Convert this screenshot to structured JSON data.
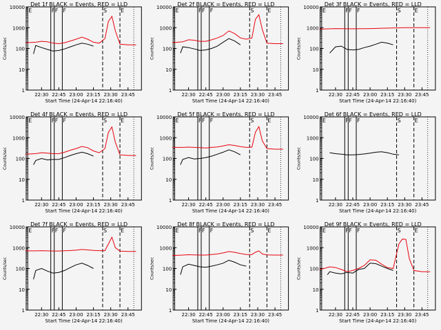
{
  "chart_data": [
    {
      "type": "line",
      "title": "Det 1f BLACK = Events, RED = LLD",
      "ylabel": "Counts/sec",
      "xlabel": "Start Time (24-Apr-14 22:16:40)",
      "yscale": "log",
      "ylim": [
        1,
        10000
      ],
      "xlim": [
        "22:16:40",
        "23:56:40"
      ],
      "x_ticks": [
        "22:30",
        "22:45",
        "23:00",
        "23:15",
        "23:30",
        "23:45"
      ],
      "y_ticks": [
        "1",
        "10",
        "100",
        "1000",
        "10000"
      ],
      "markers": [
        "E",
        "F",
        "F",
        "F",
        "S",
        "E"
      ],
      "series": [
        {
          "name": "BLACK = Events",
          "x": [
            "22:23",
            "22:25",
            "22:30",
            "22:35",
            "22:40",
            "22:45",
            "22:50",
            "22:55",
            "23:00",
            "23:05",
            "23:10",
            "23:15"
          ],
          "values": [
            55,
            140,
            110,
            90,
            75,
            80,
            95,
            120,
            150,
            180,
            160,
            130
          ]
        },
        {
          "name": "RED = LLD",
          "x": [
            "22:16",
            "22:25",
            "22:30",
            "22:35",
            "22:40",
            "22:45",
            "22:50",
            "22:55",
            "23:00",
            "23:05",
            "23:10",
            "23:15",
            "23:20",
            "23:25",
            "23:28",
            "23:31",
            "23:34",
            "23:38",
            "23:45",
            "23:52"
          ],
          "values": [
            190,
            200,
            220,
            210,
            180,
            170,
            190,
            230,
            280,
            350,
            280,
            200,
            180,
            300,
            2000,
            3500,
            700,
            160,
            150,
            150
          ]
        }
      ]
    },
    {
      "type": "line",
      "title": "Det 2f BLACK = Events, RED = LLD",
      "ylabel": "Counts/sec",
      "xlabel": "Start Time (24-Apr-14 22:16:40)",
      "yscale": "log",
      "ylim": [
        1,
        10000
      ],
      "x_ticks": [
        "22:30",
        "22:45",
        "23:00",
        "23:15",
        "23:30",
        "23:45"
      ],
      "y_ticks": [
        "1",
        "10",
        "100",
        "1000",
        "10000"
      ],
      "markers": [
        "E",
        "F",
        "F",
        "F",
        "S",
        "E"
      ],
      "series": [
        {
          "name": "BLACK = Events",
          "x": [
            "22:23",
            "22:25",
            "22:30",
            "22:35",
            "22:40",
            "22:45",
            "22:50",
            "22:55",
            "23:00",
            "23:05",
            "23:10",
            "23:15"
          ],
          "values": [
            60,
            120,
            110,
            95,
            80,
            85,
            100,
            130,
            200,
            300,
            230,
            150
          ]
        },
        {
          "name": "RED = LLD",
          "x": [
            "22:16",
            "22:25",
            "22:30",
            "22:35",
            "22:40",
            "22:45",
            "22:50",
            "22:55",
            "23:00",
            "23:05",
            "23:10",
            "23:15",
            "23:20",
            "23:25",
            "23:28",
            "23:31",
            "23:34",
            "23:38",
            "23:45",
            "23:52"
          ],
          "values": [
            190,
            210,
            260,
            250,
            220,
            220,
            260,
            320,
            420,
            700,
            520,
            320,
            280,
            320,
            2500,
            4200,
            800,
            180,
            170,
            170
          ]
        }
      ]
    },
    {
      "type": "line",
      "title": "Det 3f BLACK = Events, RED = LLD",
      "ylabel": "Counts/sec",
      "xlabel": "Start Time (24-Apr-14 22:16:40)",
      "yscale": "log",
      "ylim": [
        1,
        10000
      ],
      "x_ticks": [
        "22:30",
        "22:45",
        "23:00",
        "23:15",
        "23:30",
        "23:45"
      ],
      "y_ticks": [
        "1",
        "10",
        "100",
        "1000",
        "10000"
      ],
      "markers": [
        "E",
        "F",
        "F",
        "F",
        "S",
        "E"
      ],
      "series": [
        {
          "name": "BLACK = Events",
          "x": [
            "22:25",
            "22:30",
            "22:35",
            "22:40",
            "22:45",
            "22:50",
            "22:55",
            "23:00",
            "23:05",
            "23:10",
            "23:15",
            "23:20"
          ],
          "values": [
            60,
            120,
            130,
            90,
            85,
            90,
            110,
            130,
            160,
            200,
            180,
            150
          ]
        },
        {
          "name": "RED = LLD",
          "x": [
            "22:16",
            "22:30",
            "22:45",
            "23:00",
            "23:15",
            "23:30",
            "23:45",
            "23:52"
          ],
          "values": [
            850,
            900,
            880,
            900,
            950,
            1000,
            1000,
            1000
          ]
        }
      ]
    },
    {
      "type": "line",
      "title": "Det 4f BLACK = Events, RED = LLD",
      "ylabel": "Counts/sec",
      "xlabel": "Start Time (24-Apr-14 22:16:40)",
      "yscale": "log",
      "ylim": [
        1,
        10000
      ],
      "x_ticks": [
        "22:30",
        "22:45",
        "23:00",
        "23:15",
        "23:30",
        "23:45"
      ],
      "y_ticks": [
        "1",
        "10",
        "100",
        "1000",
        "10000"
      ],
      "markers": [
        "E",
        "F",
        "F",
        "F",
        "S",
        "E"
      ],
      "series": [
        {
          "name": "BLACK = Events",
          "x": [
            "22:23",
            "22:25",
            "22:30",
            "22:35",
            "22:40",
            "22:45",
            "22:50",
            "22:55",
            "23:00",
            "23:05",
            "23:10",
            "23:15"
          ],
          "values": [
            50,
            80,
            100,
            85,
            90,
            90,
            110,
            140,
            170,
            200,
            170,
            130
          ]
        },
        {
          "name": "RED = LLD",
          "x": [
            "22:16",
            "22:25",
            "22:30",
            "22:35",
            "22:40",
            "22:45",
            "22:50",
            "22:55",
            "23:00",
            "23:05",
            "23:10",
            "23:15",
            "23:20",
            "23:25",
            "23:28",
            "23:31",
            "23:34",
            "23:38",
            "23:45",
            "23:52"
          ],
          "values": [
            160,
            170,
            190,
            180,
            170,
            170,
            200,
            250,
            300,
            380,
            330,
            230,
            190,
            300,
            1800,
            3300,
            600,
            150,
            140,
            140
          ]
        }
      ]
    },
    {
      "type": "line",
      "title": "Det 5f BLACK = Events, RED = LLD",
      "ylabel": "Counts/sec",
      "xlabel": "Start Time (24-Apr-14 22:16:40)",
      "yscale": "log",
      "ylim": [
        1,
        10000
      ],
      "x_ticks": [
        "22:30",
        "22:45",
        "23:00",
        "23:15",
        "23:30",
        "23:45"
      ],
      "y_ticks": [
        "1",
        "10",
        "100",
        "1000",
        "10000"
      ],
      "markers": [
        "E",
        "F",
        "F",
        "F",
        "S",
        "E"
      ],
      "series": [
        {
          "name": "BLACK = Events",
          "x": [
            "22:23",
            "22:25",
            "22:30",
            "22:35",
            "22:40",
            "22:45",
            "22:50",
            "22:55",
            "23:00",
            "23:05",
            "23:10",
            "23:15"
          ],
          "values": [
            50,
            90,
            110,
            95,
            100,
            110,
            130,
            160,
            200,
            260,
            210,
            150
          ]
        },
        {
          "name": "RED = LLD",
          "x": [
            "22:16",
            "22:25",
            "22:30",
            "22:35",
            "22:40",
            "22:45",
            "22:50",
            "22:55",
            "23:00",
            "23:05",
            "23:10",
            "23:15",
            "23:20",
            "23:25",
            "23:28",
            "23:31",
            "23:34",
            "23:38",
            "23:45",
            "23:52"
          ],
          "values": [
            340,
            340,
            350,
            340,
            330,
            320,
            340,
            360,
            400,
            460,
            420,
            370,
            340,
            350,
            1800,
            3400,
            700,
            300,
            280,
            280
          ]
        }
      ]
    },
    {
      "type": "line",
      "title": "Det 6f BLACK = Events, RED = LLD",
      "ylabel": "Counts/sec",
      "xlabel": "Start Time (24-Apr-14 22:16:40)",
      "yscale": "log",
      "ylim": [
        1,
        10000
      ],
      "x_ticks": [
        "22:30",
        "22:45",
        "23:00",
        "23:15",
        "23:30",
        "23:45"
      ],
      "y_ticks": [
        "1",
        "10",
        "100",
        "1000",
        "10000"
      ],
      "markers": [
        "E",
        "F",
        "F",
        "F",
        "S",
        "E"
      ],
      "series": [
        {
          "name": "BLACK = Events",
          "x": [
            "22:25",
            "22:30",
            "22:35",
            "22:40",
            "22:45",
            "22:50",
            "22:55",
            "23:00",
            "23:05",
            "23:10",
            "23:15",
            "23:20",
            "23:25"
          ],
          "values": [
            190,
            170,
            160,
            150,
            150,
            155,
            165,
            180,
            200,
            210,
            190,
            160,
            150
          ]
        }
      ]
    },
    {
      "type": "line",
      "title": "Det 7f BLACK = Events, RED = LLD",
      "ylabel": "Counts/sec",
      "xlabel": "Start Time (24-Apr-14 22:16:40)",
      "yscale": "log",
      "ylim": [
        1,
        10000
      ],
      "x_ticks": [
        "22:30",
        "22:45",
        "23:00",
        "23:15",
        "23:30",
        "23:45"
      ],
      "y_ticks": [
        "1",
        "10",
        "100",
        "1000",
        "10000"
      ],
      "markers": [
        "E",
        "F",
        "F",
        "F",
        "S",
        "E"
      ],
      "series": [
        {
          "name": "BLACK = Events",
          "x": [
            "22:23",
            "22:25",
            "22:30",
            "22:35",
            "22:40",
            "22:45",
            "22:50",
            "22:55",
            "23:00",
            "23:05",
            "23:10",
            "23:15"
          ],
          "values": [
            30,
            80,
            100,
            75,
            60,
            65,
            80,
            110,
            150,
            180,
            140,
            100
          ]
        },
        {
          "name": "RED = LLD",
          "x": [
            "22:16",
            "22:25",
            "22:30",
            "22:35",
            "22:40",
            "22:45",
            "22:50",
            "22:55",
            "23:00",
            "23:05",
            "23:10",
            "23:15",
            "23:20",
            "23:25",
            "23:28",
            "23:31",
            "23:34",
            "23:38",
            "23:45",
            "23:52"
          ],
          "values": [
            700,
            700,
            720,
            700,
            690,
            690,
            710,
            730,
            760,
            820,
            780,
            740,
            720,
            720,
            1500,
            3200,
            1000,
            680,
            660,
            660
          ]
        }
      ]
    },
    {
      "type": "line",
      "title": "Det 8f BLACK = Events, RED = LLD",
      "ylabel": "Counts/sec",
      "xlabel": "Start Time (24-Apr-14 22:16:40)",
      "yscale": "log",
      "ylim": [
        1,
        10000
      ],
      "x_ticks": [
        "22:30",
        "22:45",
        "23:00",
        "23:15",
        "23:30",
        "23:45"
      ],
      "y_ticks": [
        "1",
        "10",
        "100",
        "1000",
        "10000"
      ],
      "markers": [
        "E",
        "F",
        "F",
        "F",
        "S",
        "E"
      ],
      "series": [
        {
          "name": "BLACK = Events",
          "x": [
            "22:23",
            "22:25",
            "22:30",
            "22:35",
            "22:40",
            "22:45",
            "22:50",
            "22:55",
            "23:00",
            "23:05",
            "23:10",
            "23:15",
            "23:20"
          ],
          "values": [
            50,
            120,
            160,
            140,
            120,
            115,
            130,
            150,
            180,
            250,
            200,
            150,
            130
          ]
        },
        {
          "name": "RED = LLD",
          "x": [
            "22:16",
            "22:25",
            "22:30",
            "22:35",
            "22:40",
            "22:45",
            "22:50",
            "22:55",
            "23:00",
            "23:05",
            "23:10",
            "23:15",
            "23:20",
            "23:25",
            "23:28",
            "23:31",
            "23:34",
            "23:38",
            "23:45",
            "23:52"
          ],
          "values": [
            420,
            440,
            460,
            450,
            440,
            440,
            470,
            500,
            560,
            650,
            600,
            520,
            470,
            470,
            600,
            700,
            500,
            450,
            440,
            440
          ]
        }
      ]
    },
    {
      "type": "line",
      "title": "Det 9f BLACK = Events, RED = LLD",
      "ylabel": "Counts/sec",
      "xlabel": "Start Time (24-Apr-14 22:16:40)",
      "yscale": "log",
      "ylim": [
        1,
        10000
      ],
      "x_ticks": [
        "22:30",
        "22:45",
        "23:00",
        "23:15",
        "23:30",
        "23:45"
      ],
      "y_ticks": [
        "1",
        "10",
        "100",
        "1000",
        "10000"
      ],
      "markers": [
        "E",
        "F",
        "F",
        "F",
        "S",
        "E"
      ],
      "series": [
        {
          "name": "BLACK = Events",
          "x": [
            "22:23",
            "22:25",
            "22:30",
            "22:35",
            "22:40",
            "22:45",
            "22:50",
            "22:55",
            "23:00",
            "23:05",
            "23:10",
            "23:15",
            "23:20"
          ],
          "values": [
            50,
            70,
            60,
            55,
            65,
            60,
            90,
            100,
            180,
            170,
            130,
            100,
            80
          ]
        },
        {
          "name": "RED = LLD",
          "x": [
            "22:16",
            "22:20",
            "22:25",
            "22:30",
            "22:35",
            "22:40",
            "22:45",
            "22:50",
            "22:55",
            "23:00",
            "23:05",
            "23:10",
            "23:15",
            "23:20",
            "23:25",
            "23:28",
            "23:31",
            "23:34",
            "23:38",
            "23:45",
            "23:52"
          ],
          "values": [
            90,
            100,
            120,
            110,
            90,
            70,
            80,
            100,
            140,
            260,
            250,
            160,
            110,
            100,
            1500,
            2600,
            2500,
            300,
            80,
            70,
            70
          ]
        }
      ]
    }
  ]
}
